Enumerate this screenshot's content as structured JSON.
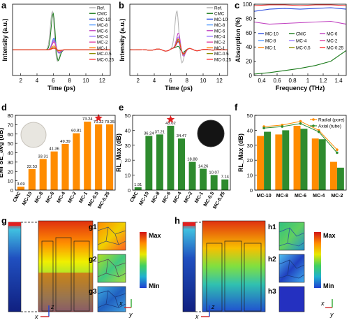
{
  "panel_letters": {
    "a": "a",
    "b": "b",
    "c": "c",
    "d": "d",
    "e": "e",
    "f": "f",
    "g": "g",
    "h": "h",
    "g1": "g1",
    "g2": "g2",
    "g3": "g3",
    "h1": "h1",
    "h2": "h2",
    "h3": "h3"
  },
  "colors": {
    "ref": "#b0b0b0",
    "cmc": "#1a7a1a",
    "mc10": "#3050e0",
    "mc8": "#5aa0ff",
    "mc6": "#c040c0",
    "mc4": "#a080ff",
    "mc2": "#e040a0",
    "mc1": "#ff7f00",
    "mc05": "#8e8e00",
    "mc025": "#ff3030",
    "bar_orange": "#ff8c00",
    "bar_green": "#2e8b2e",
    "star": "#e02020"
  },
  "colorbar": {
    "max": "Max",
    "min": "Min"
  },
  "axes_glyphs": {
    "z": "z",
    "x": "x",
    "y": "y"
  },
  "chart_data": [
    {
      "panel": "a",
      "type": "line",
      "xlabel": "Time (ps)",
      "ylabel": "Intensity (a.u.)",
      "xlim": [
        1,
        13
      ],
      "xticks": [
        2,
        4,
        6,
        8,
        10,
        12
      ],
      "legend": [
        "Ref.",
        "CMC",
        "MC-10",
        "MC-8",
        "MC-6",
        "MC-4",
        "MC-2",
        "MC-1",
        "MC-0.5",
        "MC-0.25"
      ],
      "legend_placement": "top-right",
      "series": [
        {
          "name": "Ref.",
          "peak_time": 5.9,
          "peak": 1.0
        },
        {
          "name": "CMC",
          "peak_time": 6.0,
          "peak": 0.95
        },
        {
          "name": "MC-10",
          "peak_time": 6.1,
          "peak": 0.3
        },
        {
          "name": "MC-8",
          "peak_time": 6.1,
          "peak": 0.28
        },
        {
          "name": "MC-6",
          "peak_time": 6.1,
          "peak": 0.25
        },
        {
          "name": "MC-4",
          "peak_time": 6.1,
          "peak": 0.22
        },
        {
          "name": "MC-2",
          "peak_time": 6.1,
          "peak": 0.2
        },
        {
          "name": "MC-1",
          "peak_time": 6.1,
          "peak": 0.1
        },
        {
          "name": "MC-0.5",
          "peak_time": 6.1,
          "peak": 0.06
        },
        {
          "name": "MC-0.25",
          "peak_time": 6.1,
          "peak": 0.04
        }
      ]
    },
    {
      "panel": "b",
      "type": "line",
      "xlabel": "Time (ps)",
      "ylabel": "Intensity (a.u.)",
      "xlim": [
        1,
        13
      ],
      "xticks": [
        2,
        4,
        6,
        8,
        10,
        12
      ],
      "legend": [
        "Ref.",
        "CMC",
        "MC-10",
        "MC-8",
        "MC-6",
        "MC-4",
        "MC-2",
        "MC-1",
        "MC-0.5",
        "MC-0.25"
      ],
      "legend_placement": "top-right",
      "series": [
        {
          "name": "Ref.",
          "peak_time": 6.8,
          "peak": 1.0
        },
        {
          "name": "CMC",
          "peak_time": 7.0,
          "peak": 0.1
        },
        {
          "name": "MC-10",
          "peak_time": 7.0,
          "peak": 0.22
        },
        {
          "name": "MC-8",
          "peak_time": 7.0,
          "peak": 0.25
        },
        {
          "name": "MC-6",
          "peak_time": 7.0,
          "peak": 0.45
        },
        {
          "name": "MC-4",
          "peak_time": 7.0,
          "peak": 0.35
        },
        {
          "name": "MC-2",
          "peak_time": 7.0,
          "peak": 0.3
        },
        {
          "name": "MC-1",
          "peak_time": 7.0,
          "peak": 0.3
        },
        {
          "name": "MC-0.5",
          "peak_time": 7.0,
          "peak": 0.28
        },
        {
          "name": "MC-0.25",
          "peak_time": 7.0,
          "peak": 0.24
        }
      ]
    },
    {
      "panel": "c",
      "type": "line",
      "xlabel": "Frequency (THz)",
      "ylabel": "Absorption (%)",
      "xlim": [
        0.3,
        1.5
      ],
      "ylim": [
        0,
        100
      ],
      "xticks": [
        0.4,
        0.6,
        0.8,
        1.0,
        1.2,
        1.4
      ],
      "yticks": [
        0,
        20,
        40,
        60,
        80,
        100
      ],
      "legend": [
        "MC-10",
        "CMC",
        "MC-6",
        "MC-8",
        "MC-4",
        "MC-2",
        "MC-1",
        "MC-0.5",
        "MC-0.25"
      ],
      "legend_placement": "center",
      "series": [
        {
          "name": "CMC",
          "x": [
            0.3,
            0.5,
            0.7,
            0.9,
            1.1,
            1.3,
            1.5
          ],
          "y": [
            2,
            4,
            7,
            10,
            14,
            20,
            35
          ]
        },
        {
          "name": "MC-6",
          "x": [
            0.3,
            0.5,
            0.7,
            0.9,
            1.1,
            1.3,
            1.5
          ],
          "y": [
            75,
            72,
            73,
            74,
            75,
            76,
            72
          ]
        },
        {
          "name": "MC-10",
          "x": [
            0.3,
            0.5,
            0.7,
            0.9,
            1.1,
            1.3,
            1.5
          ],
          "y": [
            90,
            93,
            94,
            93,
            94,
            95,
            93
          ]
        },
        {
          "name": "MC-0.25",
          "x": [
            0.3,
            0.5,
            0.7,
            0.9,
            1.1,
            1.3,
            1.5
          ],
          "y": [
            98,
            99,
            99,
            98,
            99,
            99,
            98
          ]
        }
      ]
    },
    {
      "panel": "d",
      "type": "bar",
      "ylabel": "EMI SE_avg (dB)",
      "categories": [
        "CMC",
        "MC-10",
        "MC-8",
        "MC-6",
        "MC-4",
        "MC-2",
        "MC-1",
        "MC-0.5",
        "MC-0.25"
      ],
      "values": [
        3.69,
        22.53,
        33.31,
        41.36,
        49.39,
        60.81,
        73.24,
        70.32,
        70.35
      ],
      "labels": [
        "3.69",
        "22.53",
        "33.31",
        "41.36",
        "49.39",
        "60.81",
        "73.24",
        "70.32",
        "70.35"
      ],
      "ylim": [
        0,
        80
      ],
      "yticks": [
        0,
        10,
        20,
        30,
        40,
        50,
        60,
        70,
        80
      ],
      "highlight": "MC-0.5"
    },
    {
      "panel": "e",
      "type": "bar",
      "ylabel": "RL_Max (dB)",
      "categories": [
        "CMC",
        "MC-10",
        "MC-8",
        "MC-6",
        "MC-4",
        "MC-2",
        "MC-1",
        "MC-0.5",
        "MC-0.25"
      ],
      "values": [
        1.91,
        36.24,
        37.21,
        43.02,
        34.47,
        18.88,
        14.26,
        10.07,
        7.14
      ],
      "labels": [
        "1.91",
        "36.24",
        "37.21",
        "43.02",
        "34.47",
        "18.88",
        "14.26",
        "10.07",
        "7.14"
      ],
      "ylim": [
        0,
        50
      ],
      "yticks": [
        0,
        10,
        20,
        30,
        40,
        50
      ],
      "highlight": "MC-6"
    },
    {
      "panel": "f",
      "type": "bar",
      "ylabel": "RL_Max (dB)",
      "categories": [
        "MC-10",
        "MC-8",
        "MC-6",
        "MC-4",
        "MC-2"
      ],
      "series": [
        {
          "name": "Radial (pore)",
          "values": [
            36.2,
            37.2,
            43.0,
            34.5,
            18.9
          ]
        },
        {
          "name": "Axial (tube)",
          "values": [
            39.0,
            40.0,
            41.0,
            34.0,
            15.0
          ]
        }
      ],
      "line_series": [
        {
          "name": "Radial (pore)",
          "values": [
            42.5,
            43.5,
            46.0,
            40.0,
            27.0
          ]
        },
        {
          "name": "Axial (tube)",
          "values": [
            41.5,
            42.5,
            44.5,
            39.0,
            25.0
          ]
        }
      ],
      "ylim": [
        0,
        50
      ],
      "yticks": [
        0,
        10,
        20,
        30,
        40,
        50
      ],
      "legend_placement": "top-right"
    }
  ]
}
